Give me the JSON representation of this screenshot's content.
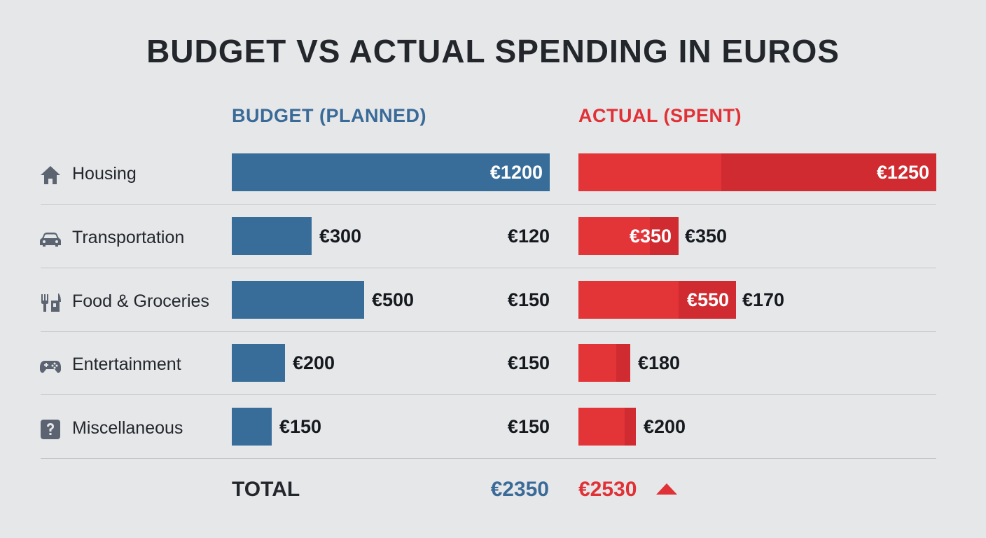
{
  "title": "BUDGET VS ACTUAL SPENDING IN EUROS",
  "headers": {
    "budget": "BUDGET (PLANNED)",
    "actual": "ACTUAL (SPENT)"
  },
  "colors": {
    "budget": "#386d9a",
    "actual": "#e33438",
    "actual_dark": "#d02b30",
    "text": "#23272c"
  },
  "rows": [
    {
      "label": "Housing",
      "icon": "house-icon",
      "budget_label": "€1200",
      "side_label": "",
      "actual_label": "€1250",
      "actual_extra": ""
    },
    {
      "label": "Transportation",
      "icon": "car-icon",
      "budget_label": "€300",
      "side_label": "€120",
      "actual_label": "€350",
      "actual_extra": "€350"
    },
    {
      "label": "Food & Groceries",
      "icon": "cutlery-icon",
      "budget_label": "€500",
      "side_label": "€150",
      "actual_label": "€550",
      "actual_extra": "€170"
    },
    {
      "label": "Entertainment",
      "icon": "gamepad-icon",
      "budget_label": "€200",
      "side_label": "€150",
      "actual_label": "€180",
      "actual_extra": ""
    },
    {
      "label": "Miscellaneous",
      "icon": "question-icon",
      "budget_label": "€150",
      "side_label": "€150",
      "actual_label": "€200",
      "actual_extra": ""
    }
  ],
  "total": {
    "label": "TOTAL",
    "budget": "€2350",
    "actual": "€2530",
    "trend_icon": "up-triangle-icon"
  },
  "chart_data": {
    "type": "bar",
    "title": "BUDGET VS ACTUAL SPENDING IN EUROS",
    "categories": [
      "Housing",
      "Transportation",
      "Food & Groceries",
      "Entertainment",
      "Miscellaneous"
    ],
    "series": [
      {
        "name": "BUDGET (PLANNED)",
        "values": [
          1200,
          300,
          500,
          200,
          150
        ]
      },
      {
        "name": "ACTUAL (SPENT)",
        "values": [
          1250,
          350,
          550,
          180,
          200
        ]
      }
    ],
    "dark_segment_values": [
      750,
      100,
      200,
      50,
      40
    ],
    "totals": {
      "budget": 2350,
      "actual": 2530
    },
    "legend": "top"
  }
}
